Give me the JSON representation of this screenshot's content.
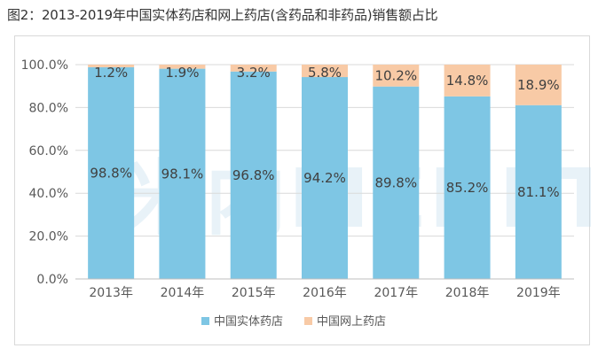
{
  "page": {
    "title": "图2：2013-2019年中国实体药店和网上药店(含药品和非药品)销售额占比",
    "watermark": "米内MENET"
  },
  "colors": {
    "series1": "#7ec6e4",
    "series2": "#f8caa6",
    "grid": "#d9d9d9"
  },
  "chart_data": {
    "type": "bar",
    "stacked": true,
    "percent": true,
    "title": "2013-2019年中国实体药店和网上药店(含药品和非药品)销售额占比",
    "categories": [
      "2013年",
      "2014年",
      "2015年",
      "2016年",
      "2017年",
      "2018年",
      "2019年"
    ],
    "series": [
      {
        "name": "中国实体药店",
        "values": [
          98.8,
          98.1,
          96.8,
          94.2,
          89.8,
          85.2,
          81.1
        ],
        "labels": [
          "98.8%",
          "98.1%",
          "96.8%",
          "94.2%",
          "89.8%",
          "85.2%",
          "81.1%"
        ]
      },
      {
        "name": "中国网上药店",
        "values": [
          1.2,
          1.9,
          3.2,
          5.8,
          10.2,
          14.8,
          18.9
        ],
        "labels": [
          "1.2%",
          "1.9%",
          "3.2%",
          "5.8%",
          "10.2%",
          "14.8%",
          "18.9%"
        ]
      }
    ],
    "ylim": [
      0,
      100
    ],
    "yticks": [
      0,
      20,
      40,
      60,
      80,
      100
    ],
    "ytick_labels": [
      "0.0%",
      "20.0%",
      "40.0%",
      "60.0%",
      "80.0%",
      "100.0%"
    ],
    "xlabel": "",
    "ylabel": "",
    "legend": "bottom-center",
    "grid": true
  }
}
